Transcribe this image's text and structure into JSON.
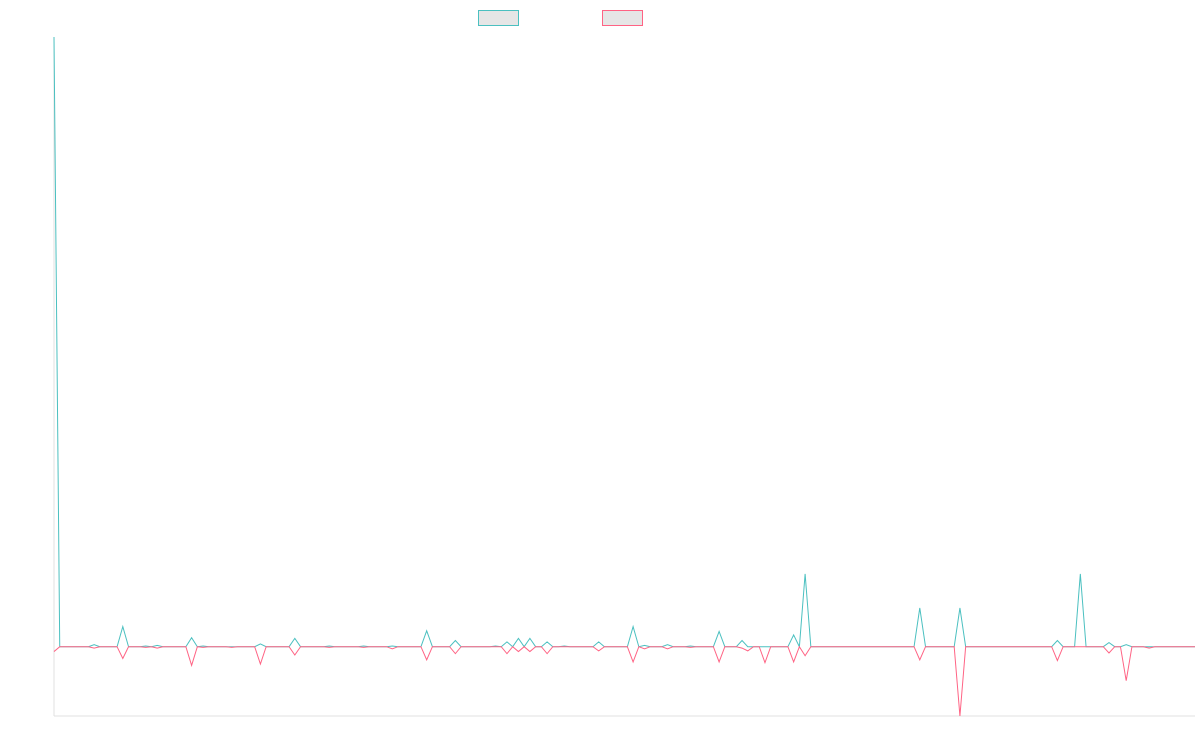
{
  "chart_data": {
    "type": "line",
    "ylim": [
      -1,
      8.8
    ],
    "legend": "top",
    "grid": false,
    "series": [
      {
        "color": "#4bc0c0",
        "values": [
          8.8,
          0,
          0,
          0,
          0,
          0,
          0,
          0.03,
          0,
          0,
          0,
          0,
          0.29,
          0,
          0,
          0,
          0.01,
          0,
          0.02,
          0,
          0,
          0,
          0,
          0,
          0.13,
          0,
          0.01,
          0,
          0,
          0,
          0,
          0,
          0,
          0,
          0,
          0,
          0.04,
          0,
          0,
          0,
          0,
          0,
          0.12,
          0,
          0,
          0,
          0,
          0,
          0.01,
          0,
          0,
          0,
          0,
          0,
          0.01,
          0,
          0,
          0,
          0,
          0.01,
          0,
          0,
          0,
          0,
          0,
          0.23,
          0,
          0,
          0,
          0,
          0.09,
          0,
          0,
          0,
          0,
          0,
          0,
          0.01,
          0,
          0.07,
          0,
          0.12,
          0,
          0.12,
          0,
          0,
          0.07,
          0,
          0,
          0.01,
          0,
          0,
          0,
          0,
          0,
          0.07,
          0,
          0,
          0,
          0,
          0,
          0.29,
          0,
          0.02,
          0,
          0,
          0,
          0.03,
          0,
          0,
          0,
          0.01,
          0,
          0,
          0,
          0,
          0.22,
          0,
          0,
          0,
          0.09,
          0,
          0,
          0,
          0,
          0,
          0,
          0,
          0,
          0.17,
          0,
          1.05,
          0,
          0,
          0,
          0,
          0,
          0,
          0,
          0,
          0,
          0,
          0,
          0,
          0,
          0,
          0,
          0,
          0,
          0,
          0,
          0.56,
          0,
          0,
          0,
          0,
          0,
          0,
          0.56,
          0,
          0,
          0,
          0,
          0,
          0,
          0,
          0,
          0,
          0,
          0,
          0,
          0,
          0,
          0,
          0,
          0.09,
          0,
          0,
          0,
          1.05,
          0,
          0,
          0,
          0,
          0.06,
          0,
          0,
          0.03,
          0,
          0,
          0,
          0,
          0,
          0,
          0,
          0,
          0,
          0,
          0,
          0
        ]
      },
      {
        "color": "#ff6384",
        "values": [
          -0.07,
          0,
          0,
          0,
          0,
          0,
          0,
          -0.02,
          0,
          0,
          0,
          0,
          -0.17,
          0,
          0,
          0,
          -0.01,
          0,
          -0.02,
          0,
          0,
          0,
          0,
          0,
          -0.27,
          0,
          -0.01,
          0,
          0,
          0,
          0,
          -0.01,
          0,
          0,
          0,
          0,
          -0.25,
          0,
          0,
          0,
          0,
          0,
          -0.12,
          0,
          0,
          0,
          0,
          0,
          -0.01,
          0,
          0,
          0,
          0,
          0,
          -0.01,
          0,
          0,
          0,
          0,
          -0.03,
          0,
          0,
          0,
          0,
          0,
          -0.19,
          0,
          0,
          0,
          0,
          -0.1,
          0,
          0,
          0,
          0,
          0,
          0,
          0,
          0,
          -0.1,
          0,
          -0.07,
          0,
          -0.07,
          0,
          0,
          -0.1,
          0,
          0,
          0,
          0,
          0,
          0,
          0,
          0,
          -0.06,
          0,
          0,
          0,
          0,
          0,
          -0.22,
          0,
          -0.03,
          0,
          0,
          0,
          -0.03,
          0,
          0,
          0,
          -0.01,
          0,
          0,
          0,
          0,
          -0.22,
          0,
          0,
          0,
          -0.02,
          -0.06,
          0,
          0,
          -0.23,
          0,
          0,
          0,
          0,
          -0.22,
          0,
          -0.13,
          0,
          0,
          0,
          0,
          0,
          0,
          0,
          0,
          0,
          0,
          0,
          0,
          0,
          0,
          0,
          0,
          0,
          0,
          0,
          -0.19,
          0,
          0,
          0,
          0,
          0,
          0,
          -1,
          0,
          0,
          0,
          0,
          0,
          0,
          0,
          0,
          0,
          0,
          0,
          0,
          0,
          0,
          0,
          0,
          -0.2,
          0,
          0,
          0,
          0,
          0,
          0,
          0,
          0,
          -0.09,
          0,
          0,
          -0.49,
          0,
          0,
          0,
          -0.02,
          0,
          0,
          0,
          0,
          0,
          0,
          0,
          0
        ]
      }
    ]
  }
}
